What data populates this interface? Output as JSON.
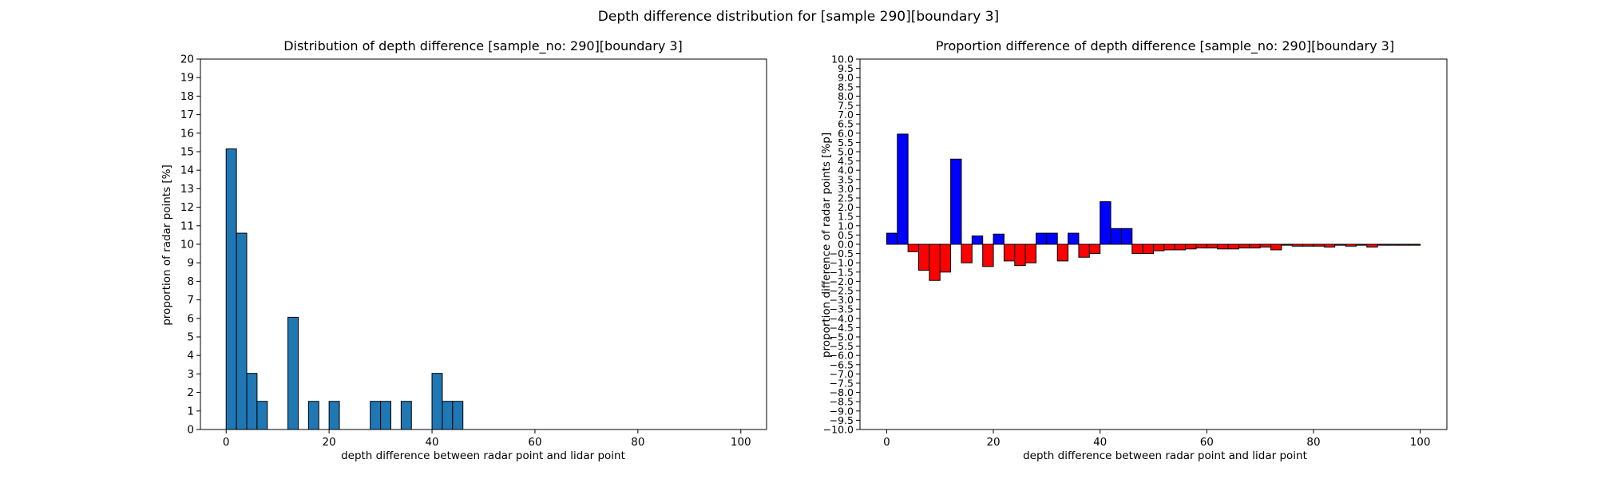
{
  "suptitle": "Depth difference distribution for [sample 290][boundary 3]",
  "chart_data": [
    {
      "type": "bar",
      "title": "Distribution of depth difference [sample_no: 290][boundary 3]",
      "xlabel": "depth difference between radar point and lidar point",
      "ylabel": "proportion of radar points [%]",
      "xlim": [
        -5,
        105
      ],
      "ylim": [
        0,
        20
      ],
      "xticks": [
        0,
        20,
        40,
        60,
        80,
        100
      ],
      "yticks": [
        0,
        1,
        2,
        3,
        4,
        5,
        6,
        7,
        8,
        9,
        10,
        11,
        12,
        13,
        14,
        15,
        16,
        17,
        18,
        19,
        20
      ],
      "bin_width": 2,
      "bin_starts": [
        0,
        2,
        4,
        6,
        8,
        10,
        12,
        14,
        16,
        18,
        20,
        22,
        24,
        26,
        28,
        30,
        32,
        34,
        36,
        38,
        40,
        42,
        44,
        46,
        48
      ],
      "values": [
        15.15,
        10.6,
        3.03,
        1.52,
        0,
        0,
        6.06,
        0,
        1.52,
        0,
        1.52,
        0,
        0,
        0,
        1.52,
        1.52,
        0,
        1.52,
        0,
        0,
        3.03,
        1.52,
        1.52,
        0,
        0
      ],
      "color": "#1f77b4",
      "edgecolor": "#000000",
      "grid": false
    },
    {
      "type": "bar",
      "title": "Proportion difference of depth difference [sample_no: 290][boundary 3]",
      "xlabel": "depth difference between radar point and lidar point",
      "ylabel": "proportion difference of radar points [%p]",
      "xlim": [
        -5,
        105
      ],
      "ylim": [
        -10,
        10
      ],
      "xticks": [
        0,
        20,
        40,
        60,
        80,
        100
      ],
      "yticks": [
        -10.0,
        -9.5,
        -9.0,
        -8.5,
        -8.0,
        -7.5,
        -7.0,
        -6.5,
        -6.0,
        -5.5,
        -5.0,
        -4.5,
        -4.0,
        -3.5,
        -3.0,
        -2.5,
        -2.0,
        -1.5,
        -1.0,
        -0.5,
        0.0,
        0.5,
        1.0,
        1.5,
        2.0,
        2.5,
        3.0,
        3.5,
        4.0,
        4.5,
        5.0,
        5.5,
        6.0,
        6.5,
        7.0,
        7.5,
        8.0,
        8.5,
        9.0,
        9.5,
        10.0
      ],
      "bin_width": 2,
      "bin_starts": [
        0,
        2,
        4,
        6,
        8,
        10,
        12,
        14,
        16,
        18,
        20,
        22,
        24,
        26,
        28,
        30,
        32,
        34,
        36,
        38,
        40,
        42,
        44,
        46,
        48,
        50,
        52,
        54,
        56,
        58,
        60,
        62,
        64,
        66,
        68,
        70,
        72,
        74,
        76,
        78,
        80,
        82,
        84,
        86,
        88,
        90,
        92,
        94,
        96,
        98
      ],
      "values": [
        0.6,
        5.95,
        -0.4,
        -1.4,
        -1.95,
        -1.5,
        4.6,
        -1.0,
        0.45,
        -1.2,
        0.55,
        -0.9,
        -1.15,
        -1.0,
        0.6,
        0.6,
        -0.9,
        0.6,
        -0.7,
        -0.5,
        2.3,
        0.85,
        0.85,
        -0.5,
        -0.5,
        -0.35,
        -0.3,
        -0.3,
        -0.25,
        -0.2,
        -0.2,
        -0.25,
        -0.25,
        -0.2,
        -0.2,
        -0.15,
        -0.3,
        -0.05,
        -0.1,
        -0.1,
        -0.1,
        -0.15,
        -0.05,
        -0.1,
        -0.05,
        -0.15,
        -0.05,
        -0.05,
        -0.05,
        -0.05
      ],
      "positive_color": "#0000ff",
      "negative_color": "#ff0000",
      "edgecolor": "#000000",
      "grid": false
    }
  ]
}
